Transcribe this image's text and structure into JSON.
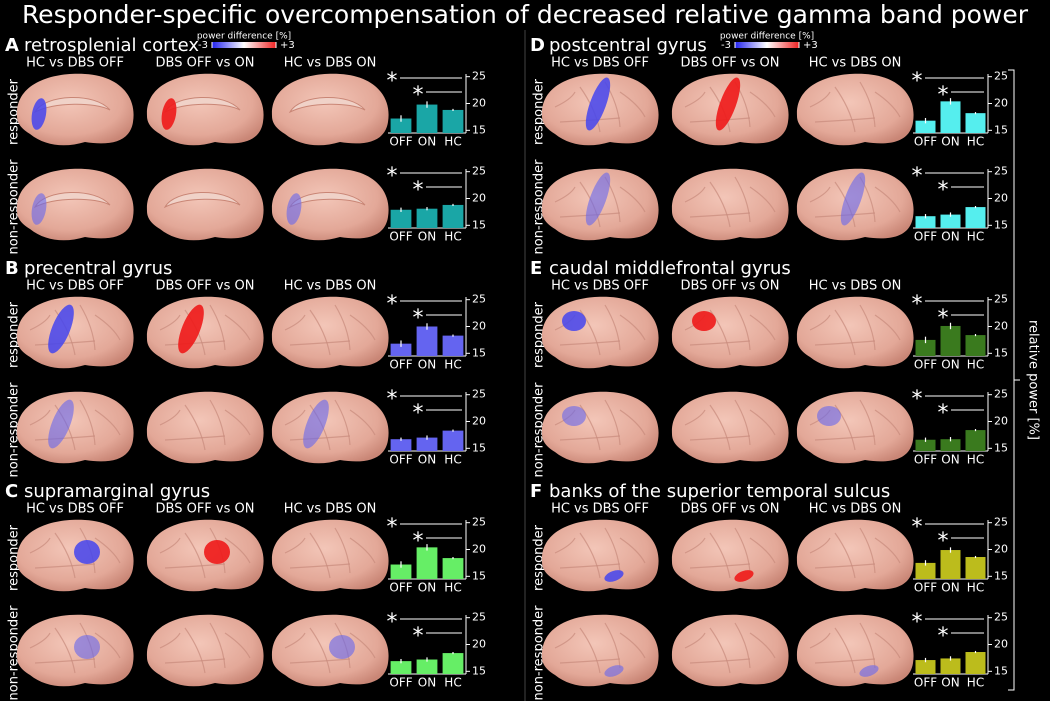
{
  "title": "Responder-specific overcompensation of decreased relative gamma band power",
  "colorbar": {
    "label": "power difference [%]",
    "ticks": [
      -3,
      {
        "value": 3,
        "label": "+3"
      }
    ]
  },
  "ylabel": "relative power [%]",
  "columns": [
    "HC vs DBS OFF",
    "DBS OFF vs ON",
    "HC vs DBS ON"
  ],
  "rows": [
    "responder",
    "non-responder"
  ],
  "panels": [
    {
      "letter": "A",
      "title": "retrosplenial cortex"
    },
    {
      "letter": "B",
      "title": "precentral gyrus"
    },
    {
      "letter": "C",
      "title": "supramarginal gyrus"
    },
    {
      "letter": "D",
      "title": "postcentral gyrus"
    },
    {
      "letter": "E",
      "title": "caudal middlefrontal gyrus"
    },
    {
      "letter": "F",
      "title": "banks of the superior temporal sulcus"
    }
  ],
  "chart_data": [
    {
      "type": "bar",
      "categories": [
        "OFF",
        "ON",
        "HC"
      ],
      "values": [
        17.2,
        19.8,
        18.8
      ],
      "errors": [
        0.6,
        0.6,
        0.2
      ],
      "color": "#1aa6a6",
      "ylim": [
        14.5,
        25.5
      ],
      "yticks": [
        15,
        20,
        25
      ],
      "annotations": [
        "*",
        "*"
      ]
    },
    {
      "type": "bar",
      "categories": [
        "OFF",
        "ON",
        "HC"
      ],
      "values": [
        17.9,
        18.1,
        18.8
      ],
      "errors": [
        0.4,
        0.3,
        0.2
      ],
      "color": "#1aa6a6",
      "ylim": [
        14.5,
        25.5
      ],
      "yticks": [
        15,
        20,
        25
      ],
      "annotations": [
        "*",
        "*"
      ]
    },
    {
      "type": "bar",
      "categories": [
        "OFF",
        "ON",
        "HC"
      ],
      "values": [
        16.8,
        20.0,
        18.3
      ],
      "errors": [
        0.6,
        0.6,
        0.2
      ],
      "color": "#6464f0",
      "ylim": [
        14.5,
        25.5
      ],
      "yticks": [
        15,
        20,
        25
      ],
      "annotations": [
        "*",
        "*"
      ]
    },
    {
      "type": "bar",
      "categories": [
        "OFF",
        "ON",
        "HC"
      ],
      "values": [
        16.7,
        17.0,
        18.3
      ],
      "errors": [
        0.3,
        0.4,
        0.2
      ],
      "color": "#6464f0",
      "ylim": [
        14.5,
        25.5
      ],
      "yticks": [
        15,
        20,
        25
      ],
      "annotations": [
        "*",
        "*"
      ]
    },
    {
      "type": "bar",
      "categories": [
        "OFF",
        "ON",
        "HC"
      ],
      "values": [
        17.2,
        20.4,
        18.4
      ],
      "errors": [
        0.6,
        0.6,
        0.2
      ],
      "color": "#66ee66",
      "ylim": [
        14.5,
        25.5
      ],
      "yticks": [
        15,
        20,
        25
      ],
      "annotations": [
        "*",
        "*"
      ]
    },
    {
      "type": "bar",
      "categories": [
        "OFF",
        "ON",
        "HC"
      ],
      "values": [
        16.9,
        17.2,
        18.4
      ],
      "errors": [
        0.4,
        0.4,
        0.2
      ],
      "color": "#66ee66",
      "ylim": [
        14.5,
        25.5
      ],
      "yticks": [
        15,
        20,
        25
      ],
      "annotations": [
        "*",
        "*"
      ]
    },
    {
      "type": "bar",
      "categories": [
        "OFF",
        "ON",
        "HC"
      ],
      "values": [
        16.8,
        20.4,
        18.2
      ],
      "errors": [
        0.5,
        0.6,
        0.2
      ],
      "color": "#55eeee",
      "ylim": [
        14.5,
        25.5
      ],
      "yticks": [
        15,
        20,
        25
      ],
      "annotations": [
        "*",
        "*"
      ]
    },
    {
      "type": "bar",
      "categories": [
        "OFF",
        "ON",
        "HC"
      ],
      "values": [
        16.7,
        17.0,
        18.4
      ],
      "errors": [
        0.4,
        0.4,
        0.2
      ],
      "color": "#55eeee",
      "ylim": [
        14.5,
        25.5
      ],
      "yticks": [
        15,
        20,
        25
      ],
      "annotations": [
        "*",
        "*"
      ]
    },
    {
      "type": "bar",
      "categories": [
        "OFF",
        "ON",
        "HC"
      ],
      "values": [
        17.5,
        20.1,
        18.4
      ],
      "errors": [
        0.6,
        0.6,
        0.2
      ],
      "color": "#3a7a1e",
      "ylim": [
        14.5,
        25.5
      ],
      "yticks": [
        15,
        20,
        25
      ],
      "annotations": [
        "*",
        "*"
      ]
    },
    {
      "type": "bar",
      "categories": [
        "OFF",
        "ON",
        "HC"
      ],
      "values": [
        16.6,
        16.7,
        18.4
      ],
      "errors": [
        0.4,
        0.4,
        0.2
      ],
      "color": "#3a7a1e",
      "ylim": [
        14.5,
        25.5
      ],
      "yticks": [
        15,
        20,
        25
      ],
      "annotations": [
        "*",
        "*"
      ]
    },
    {
      "type": "bar",
      "categories": [
        "OFF",
        "ON",
        "HC"
      ],
      "values": [
        17.5,
        19.9,
        18.6
      ],
      "errors": [
        0.5,
        0.5,
        0.2
      ],
      "color": "#bcbc1c",
      "ylim": [
        14.5,
        25.5
      ],
      "yticks": [
        15,
        20,
        25
      ],
      "annotations": [
        "*",
        "*"
      ]
    },
    {
      "type": "bar",
      "categories": [
        "OFF",
        "ON",
        "HC"
      ],
      "values": [
        17.1,
        17.4,
        18.6
      ],
      "errors": [
        0.4,
        0.4,
        0.2
      ],
      "color": "#bcbc1c",
      "ylim": [
        14.5,
        25.5
      ],
      "yticks": [
        15,
        20,
        25
      ],
      "annotations": [
        "*",
        "*"
      ]
    }
  ]
}
